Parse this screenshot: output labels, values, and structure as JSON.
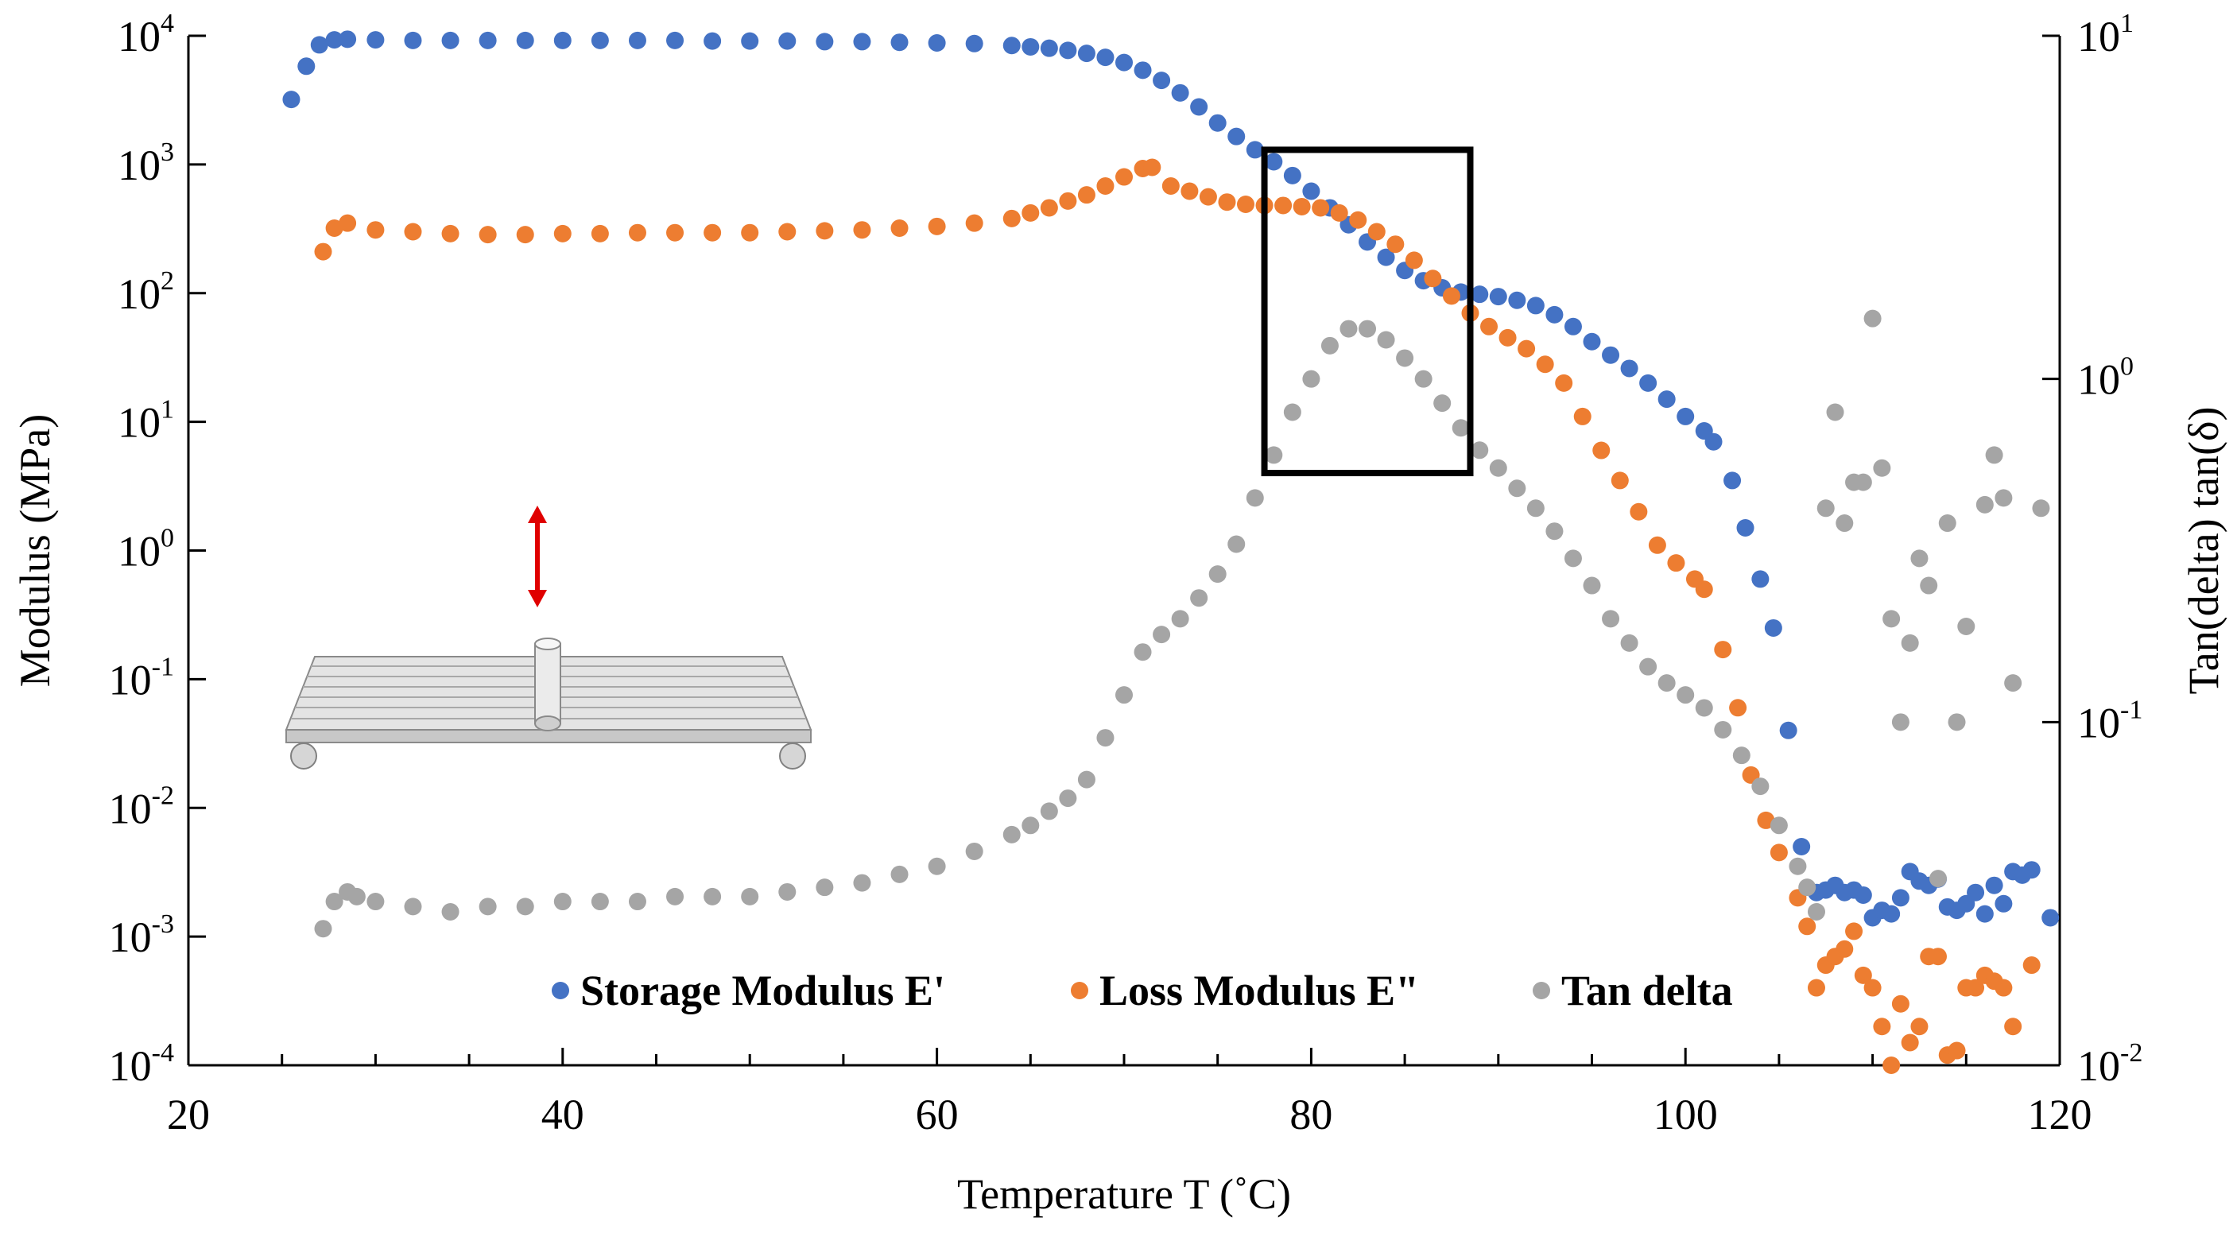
{
  "chart_data": {
    "type": "scatter",
    "title": "",
    "xlabel": "Temperature T (˚C)",
    "ylabel_left": "Modulus (MPa)",
    "ylabel_right": "Tan(delta) tan(δ)",
    "xlim": [
      20,
      120
    ],
    "ylim_left": [
      0.0001,
      10000
    ],
    "ylim_right": [
      0.01,
      10
    ],
    "y_scale": "log",
    "grid": false,
    "legend_position": "bottom-center",
    "x_ticks": [
      "20",
      "40",
      "60",
      "80",
      "100",
      "120"
    ],
    "y_left_ticks": [
      {
        "base": "10",
        "exp": "4"
      },
      {
        "base": "10",
        "exp": "3"
      },
      {
        "base": "10",
        "exp": "2"
      },
      {
        "base": "10",
        "exp": "1"
      },
      {
        "base": "10",
        "exp": "0"
      },
      {
        "base": "10",
        "exp": "-1"
      },
      {
        "base": "10",
        "exp": "-2"
      },
      {
        "base": "10",
        "exp": "-3"
      },
      {
        "base": "10",
        "exp": "-4"
      }
    ],
    "y_right_ticks": [
      {
        "base": "10",
        "exp": "1"
      },
      {
        "base": "10",
        "exp": "0"
      },
      {
        "base": "10",
        "exp": "-1"
      },
      {
        "base": "10",
        "exp": "-2"
      }
    ],
    "highlight_box": {
      "x_range": [
        77.5,
        88.5
      ],
      "y_range_left": [
        4,
        1300
      ]
    },
    "series": [
      {
        "name": "Storage Modulus E'",
        "axis": "left",
        "color": "#4472C4",
        "points": [
          [
            25.5,
            3200
          ],
          [
            26.3,
            5800
          ],
          [
            27.0,
            8500
          ],
          [
            27.8,
            9300
          ],
          [
            28.5,
            9400
          ],
          [
            30,
            9300
          ],
          [
            32,
            9200
          ],
          [
            34,
            9200
          ],
          [
            36,
            9200
          ],
          [
            38,
            9200
          ],
          [
            40,
            9200
          ],
          [
            42,
            9200
          ],
          [
            44,
            9200
          ],
          [
            46,
            9200
          ],
          [
            48,
            9100
          ],
          [
            50,
            9100
          ],
          [
            52,
            9100
          ],
          [
            54,
            9000
          ],
          [
            56,
            9000
          ],
          [
            58,
            8900
          ],
          [
            60,
            8800
          ],
          [
            62,
            8700
          ],
          [
            64,
            8400
          ],
          [
            65,
            8200
          ],
          [
            66,
            8000
          ],
          [
            67,
            7700
          ],
          [
            68,
            7300
          ],
          [
            69,
            6800
          ],
          [
            70,
            6200
          ],
          [
            71,
            5400
          ],
          [
            72,
            4500
          ],
          [
            73,
            3600
          ],
          [
            74,
            2800
          ],
          [
            75,
            2100
          ],
          [
            76,
            1650
          ],
          [
            77,
            1300
          ],
          [
            78,
            1050
          ],
          [
            79,
            820
          ],
          [
            80,
            620
          ],
          [
            81,
            460
          ],
          [
            82,
            340
          ],
          [
            83,
            250
          ],
          [
            84,
            190
          ],
          [
            85,
            150
          ],
          [
            86,
            125
          ],
          [
            87,
            110
          ],
          [
            88,
            102
          ],
          [
            89,
            98
          ],
          [
            90,
            94
          ],
          [
            91,
            88
          ],
          [
            92,
            80
          ],
          [
            93,
            68
          ],
          [
            94,
            55
          ],
          [
            95,
            42
          ],
          [
            96,
            33
          ],
          [
            97,
            26
          ],
          [
            98,
            20
          ],
          [
            99,
            15
          ],
          [
            100,
            11
          ],
          [
            101,
            8.5
          ],
          [
            101.5,
            7
          ],
          [
            102.5,
            3.5
          ],
          [
            103.2,
            1.5
          ],
          [
            104,
            0.6
          ],
          [
            104.7,
            0.25
          ],
          [
            105.5,
            0.04
          ],
          [
            106.2,
            0.005
          ],
          [
            107,
            0.0022
          ],
          [
            107.5,
            0.0023
          ],
          [
            108,
            0.0025
          ],
          [
            108.5,
            0.0022
          ],
          [
            109,
            0.0023
          ],
          [
            109.5,
            0.0021
          ],
          [
            110,
            0.0014
          ],
          [
            110.5,
            0.0016
          ],
          [
            111,
            0.0015
          ],
          [
            111.5,
            0.002
          ],
          [
            112,
            0.0032
          ],
          [
            112.5,
            0.0027
          ],
          [
            113,
            0.0025
          ],
          [
            113.5,
            0.0028
          ],
          [
            114,
            0.0017
          ],
          [
            114.5,
            0.0016
          ],
          [
            115,
            0.0018
          ],
          [
            115.5,
            0.0022
          ],
          [
            116,
            0.0015
          ],
          [
            116.5,
            0.0025
          ],
          [
            117,
            0.0018
          ],
          [
            117.5,
            0.0032
          ],
          [
            118,
            0.003
          ],
          [
            118.5,
            0.0033
          ],
          [
            119.5,
            0.0014
          ]
        ]
      },
      {
        "name": "Loss Modulus E\"",
        "axis": "left",
        "color": "#ED7D31",
        "points": [
          [
            27.2,
            210
          ],
          [
            27.8,
            320
          ],
          [
            28.5,
            350
          ],
          [
            30,
            310
          ],
          [
            32,
            300
          ],
          [
            34,
            290
          ],
          [
            36,
            285
          ],
          [
            38,
            285
          ],
          [
            40,
            290
          ],
          [
            42,
            290
          ],
          [
            44,
            295
          ],
          [
            46,
            295
          ],
          [
            48,
            295
          ],
          [
            50,
            295
          ],
          [
            52,
            300
          ],
          [
            54,
            305
          ],
          [
            56,
            310
          ],
          [
            58,
            320
          ],
          [
            60,
            330
          ],
          [
            62,
            350
          ],
          [
            64,
            380
          ],
          [
            65,
            420
          ],
          [
            66,
            460
          ],
          [
            67,
            520
          ],
          [
            68,
            580
          ],
          [
            69,
            680
          ],
          [
            70,
            800
          ],
          [
            71,
            930
          ],
          [
            71.5,
            950
          ],
          [
            72.5,
            680
          ],
          [
            73.5,
            620
          ],
          [
            74.5,
            560
          ],
          [
            75.5,
            510
          ],
          [
            76.5,
            490
          ],
          [
            77.5,
            480
          ],
          [
            78.5,
            480
          ],
          [
            79.5,
            470
          ],
          [
            80.5,
            460
          ],
          [
            81.5,
            420
          ],
          [
            82.5,
            370
          ],
          [
            83.5,
            300
          ],
          [
            84.5,
            240
          ],
          [
            85.5,
            180
          ],
          [
            86.5,
            130
          ],
          [
            87.5,
            95
          ],
          [
            88.5,
            70
          ],
          [
            89.5,
            55
          ],
          [
            90.5,
            45
          ],
          [
            91.5,
            37
          ],
          [
            92.5,
            28
          ],
          [
            93.5,
            20
          ],
          [
            94.5,
            11
          ],
          [
            95.5,
            6
          ],
          [
            96.5,
            3.5
          ],
          [
            97.5,
            2
          ],
          [
            98.5,
            1.1
          ],
          [
            99.5,
            0.8
          ],
          [
            100.5,
            0.6
          ],
          [
            101,
            0.5
          ],
          [
            102,
            0.17
          ],
          [
            102.8,
            0.06
          ],
          [
            103.5,
            0.018
          ],
          [
            104.3,
            0.008
          ],
          [
            105,
            0.0045
          ],
          [
            106,
            0.002
          ],
          [
            106.5,
            0.0012
          ],
          [
            107,
            0.0004
          ],
          [
            107.5,
            0.0006
          ],
          [
            108,
            0.0007
          ],
          [
            108.5,
            0.0008
          ],
          [
            109,
            0.0011
          ],
          [
            109.5,
            0.0005
          ],
          [
            110,
            0.0004
          ],
          [
            110.5,
            0.0002
          ],
          [
            111,
            0.0001
          ],
          [
            111.5,
            0.0003
          ],
          [
            112,
            0.00015
          ],
          [
            112.5,
            0.0002
          ],
          [
            113,
            0.0007
          ],
          [
            113.5,
            0.0007
          ],
          [
            114,
            0.00012
          ],
          [
            114.5,
            0.00013
          ],
          [
            115,
            0.0004
          ],
          [
            115.5,
            0.0004
          ],
          [
            116,
            0.0005
          ],
          [
            116.5,
            0.00045
          ],
          [
            117,
            0.0004
          ],
          [
            117.5,
            0.0002
          ],
          [
            118.5,
            0.0006
          ]
        ]
      },
      {
        "name": "Tan delta",
        "axis": "right",
        "color": "#A5A5A5",
        "points": [
          [
            27.2,
            0.025
          ],
          [
            27.8,
            0.03
          ],
          [
            28.5,
            0.032
          ],
          [
            29,
            0.031
          ],
          [
            30,
            0.03
          ],
          [
            32,
            0.029
          ],
          [
            34,
            0.028
          ],
          [
            36,
            0.029
          ],
          [
            38,
            0.029
          ],
          [
            40,
            0.03
          ],
          [
            42,
            0.03
          ],
          [
            44,
            0.03
          ],
          [
            46,
            0.031
          ],
          [
            48,
            0.031
          ],
          [
            50,
            0.031
          ],
          [
            52,
            0.032
          ],
          [
            54,
            0.033
          ],
          [
            56,
            0.034
          ],
          [
            58,
            0.036
          ],
          [
            60,
            0.038
          ],
          [
            62,
            0.042
          ],
          [
            64,
            0.047
          ],
          [
            65,
            0.05
          ],
          [
            66,
            0.055
          ],
          [
            67,
            0.06
          ],
          [
            68,
            0.068
          ],
          [
            69,
            0.09
          ],
          [
            70,
            0.12
          ],
          [
            71,
            0.16
          ],
          [
            72,
            0.18
          ],
          [
            73,
            0.2
          ],
          [
            74,
            0.23
          ],
          [
            75,
            0.27
          ],
          [
            76,
            0.33
          ],
          [
            77,
            0.45
          ],
          [
            78,
            0.6
          ],
          [
            79,
            0.8
          ],
          [
            80,
            1.0
          ],
          [
            81,
            1.25
          ],
          [
            82,
            1.4
          ],
          [
            83,
            1.4
          ],
          [
            84,
            1.3
          ],
          [
            85,
            1.15
          ],
          [
            86,
            1.0
          ],
          [
            87,
            0.85
          ],
          [
            88,
            0.72
          ],
          [
            89,
            0.62
          ],
          [
            90,
            0.55
          ],
          [
            91,
            0.48
          ],
          [
            92,
            0.42
          ],
          [
            93,
            0.36
          ],
          [
            94,
            0.3
          ],
          [
            95,
            0.25
          ],
          [
            96,
            0.2
          ],
          [
            97,
            0.17
          ],
          [
            98,
            0.145
          ],
          [
            99,
            0.13
          ],
          [
            100,
            0.12
          ],
          [
            101,
            0.11
          ],
          [
            102,
            0.095
          ],
          [
            103,
            0.08
          ],
          [
            104,
            0.065
          ],
          [
            105,
            0.05
          ],
          [
            106,
            0.038
          ],
          [
            106.5,
            0.033
          ],
          [
            107,
            0.028
          ],
          [
            107.5,
            0.42
          ],
          [
            108,
            0.8
          ],
          [
            108.5,
            0.38
          ],
          [
            109,
            0.5
          ],
          [
            109.5,
            0.5
          ],
          [
            110,
            1.5
          ],
          [
            110.5,
            0.55
          ],
          [
            111,
            0.2
          ],
          [
            111.5,
            0.1
          ],
          [
            112,
            0.17
          ],
          [
            112.5,
            0.3
          ],
          [
            113,
            0.25
          ],
          [
            113.5,
            0.035
          ],
          [
            114,
            0.38
          ],
          [
            114.5,
            0.1
          ],
          [
            115,
            0.19
          ],
          [
            116,
            0.43
          ],
          [
            116.5,
            0.6
          ],
          [
            117,
            0.45
          ],
          [
            117.5,
            0.13
          ],
          [
            119,
            0.42
          ]
        ]
      }
    ]
  }
}
